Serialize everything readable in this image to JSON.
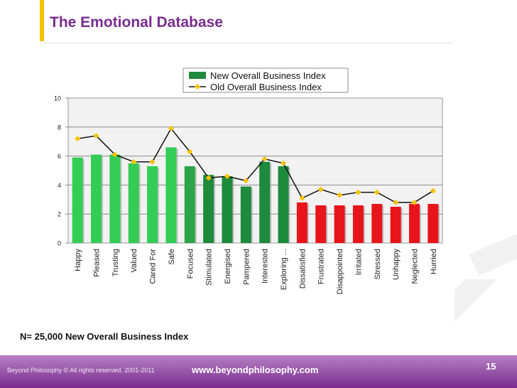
{
  "slide": {
    "title": "The Emotional Database",
    "caption": "N= 25,000 New Overall Business Index",
    "copyright": "Beyond Philosophy © All rights reserved. 2001-2011",
    "website": "www.beyondphilosophy.com",
    "page_number": "15"
  },
  "colors": {
    "title": "#7a2c8f",
    "accent": "#f5c400",
    "footer": "#7a2c8f",
    "bar_positive_light": "#33cc55",
    "bar_positive_dark": "#1e8a3c",
    "bar_negative": "#e8141c",
    "line": "#111111",
    "marker": "#f5c400"
  },
  "chart_data": {
    "type": "bar",
    "title": "",
    "xlabel": "",
    "ylabel": "",
    "ylim": [
      0,
      10
    ],
    "yticks": [
      0,
      2,
      4,
      6,
      8,
      10
    ],
    "categories": [
      "Happy",
      "Pleased",
      "Trusting",
      "Valued",
      "Cared For",
      "Safe",
      "Focused",
      "Stimulated",
      "Energised",
      "Pampered",
      "Interested",
      "Exploring ...",
      "Dissatisfied",
      "Frustrated",
      "Disappointed",
      "Irritated",
      "Stressed",
      "Unhappy",
      "Neglected",
      "Hurried"
    ],
    "series": [
      {
        "name": "New Overall Business Index",
        "kind": "bar",
        "values": [
          5.9,
          6.1,
          6.1,
          5.5,
          5.3,
          6.6,
          5.3,
          4.7,
          4.6,
          3.9,
          5.6,
          5.3,
          2.8,
          2.6,
          2.6,
          2.6,
          2.7,
          2.5,
          2.7,
          2.7
        ],
        "bar_colors": [
          "#33cc55",
          "#33cc55",
          "#33cc55",
          "#33cc55",
          "#33cc55",
          "#33cc55",
          "#2aa548",
          "#1e8a3c",
          "#1e8a3c",
          "#1e8a3c",
          "#1e8a3c",
          "#1e8a3c",
          "#e8141c",
          "#e8141c",
          "#e8141c",
          "#e8141c",
          "#e8141c",
          "#e8141c",
          "#e8141c",
          "#e8141c"
        ]
      },
      {
        "name": "Old Overall Business Index",
        "kind": "line",
        "values": [
          7.2,
          7.4,
          6.1,
          5.6,
          5.6,
          7.9,
          6.3,
          4.5,
          4.6,
          4.3,
          5.8,
          5.5,
          3.1,
          3.7,
          3.3,
          3.5,
          3.5,
          2.8,
          2.8,
          3.6
        ]
      }
    ],
    "legend_position": "top"
  }
}
